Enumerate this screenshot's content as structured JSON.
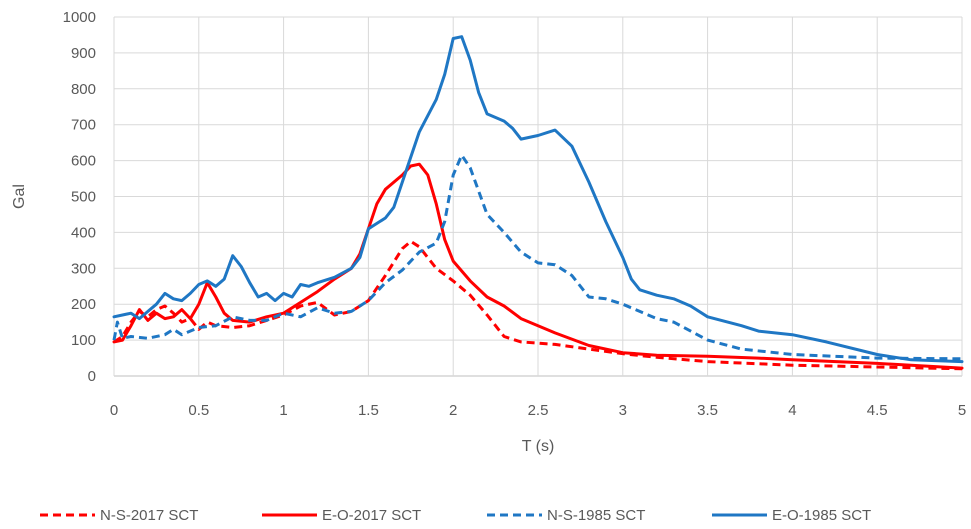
{
  "chart_data": {
    "type": "line",
    "title": "",
    "xlabel": "T (s)",
    "ylabel": "Gal",
    "xlim": [
      0,
      5
    ],
    "ylim": [
      0,
      1000
    ],
    "x_ticks": [
      "0",
      "0.5",
      "1",
      "1.5",
      "2",
      "2.5",
      "3",
      "3.5",
      "4",
      "4.5",
      "5"
    ],
    "y_ticks": [
      "0",
      "100",
      "200",
      "300",
      "400",
      "500",
      "600",
      "700",
      "800",
      "900",
      "1000"
    ],
    "grid": "vertical and horizontal",
    "legend_position": "bottom",
    "series": [
      {
        "name": "N-S-2017 SCT",
        "color": "#ff0000",
        "dash": "dashed",
        "points": [
          [
            0,
            95
          ],
          [
            0.05,
            110
          ],
          [
            0.1,
            150
          ],
          [
            0.15,
            180
          ],
          [
            0.2,
            165
          ],
          [
            0.25,
            185
          ],
          [
            0.3,
            195
          ],
          [
            0.35,
            175
          ],
          [
            0.4,
            150
          ],
          [
            0.45,
            160
          ],
          [
            0.5,
            130
          ],
          [
            0.55,
            150
          ],
          [
            0.6,
            140
          ],
          [
            0.7,
            135
          ],
          [
            0.8,
            140
          ],
          [
            0.9,
            155
          ],
          [
            1.0,
            170
          ],
          [
            1.1,
            195
          ],
          [
            1.2,
            205
          ],
          [
            1.3,
            170
          ],
          [
            1.4,
            180
          ],
          [
            1.5,
            210
          ],
          [
            1.6,
            280
          ],
          [
            1.7,
            355
          ],
          [
            1.75,
            375
          ],
          [
            1.8,
            360
          ],
          [
            1.9,
            300
          ],
          [
            2.0,
            265
          ],
          [
            2.1,
            225
          ],
          [
            2.2,
            170
          ],
          [
            2.3,
            110
          ],
          [
            2.4,
            95
          ],
          [
            2.6,
            88
          ],
          [
            2.8,
            75
          ],
          [
            3.0,
            62
          ],
          [
            3.2,
            52
          ],
          [
            3.5,
            40
          ],
          [
            4.0,
            30
          ],
          [
            4.5,
            25
          ],
          [
            5.0,
            20
          ]
        ]
      },
      {
        "name": "E-O-2017 SCT",
        "color": "#ff0000",
        "dash": "solid",
        "points": [
          [
            0,
            95
          ],
          [
            0.05,
            100
          ],
          [
            0.1,
            140
          ],
          [
            0.15,
            185
          ],
          [
            0.2,
            155
          ],
          [
            0.25,
            175
          ],
          [
            0.3,
            160
          ],
          [
            0.35,
            165
          ],
          [
            0.4,
            185
          ],
          [
            0.45,
            160
          ],
          [
            0.5,
            200
          ],
          [
            0.55,
            260
          ],
          [
            0.6,
            220
          ],
          [
            0.65,
            175
          ],
          [
            0.7,
            155
          ],
          [
            0.8,
            150
          ],
          [
            0.9,
            165
          ],
          [
            1.0,
            175
          ],
          [
            1.1,
            205
          ],
          [
            1.2,
            235
          ],
          [
            1.3,
            270
          ],
          [
            1.4,
            300
          ],
          [
            1.45,
            340
          ],
          [
            1.5,
            410
          ],
          [
            1.55,
            480
          ],
          [
            1.6,
            520
          ],
          [
            1.7,
            560
          ],
          [
            1.75,
            585
          ],
          [
            1.8,
            590
          ],
          [
            1.85,
            560
          ],
          [
            1.9,
            480
          ],
          [
            1.95,
            380
          ],
          [
            2.0,
            320
          ],
          [
            2.1,
            265
          ],
          [
            2.2,
            220
          ],
          [
            2.3,
            195
          ],
          [
            2.4,
            160
          ],
          [
            2.6,
            120
          ],
          [
            2.8,
            85
          ],
          [
            3.0,
            65
          ],
          [
            3.2,
            58
          ],
          [
            3.5,
            55
          ],
          [
            3.8,
            50
          ],
          [
            4.0,
            45
          ],
          [
            4.5,
            35
          ],
          [
            5.0,
            22
          ]
        ]
      },
      {
        "name": "N-S-1985 SCT",
        "color": "#1f77c4",
        "dash": "dashed",
        "points": [
          [
            0,
            100
          ],
          [
            0.02,
            150
          ],
          [
            0.05,
            105
          ],
          [
            0.1,
            110
          ],
          [
            0.2,
            105
          ],
          [
            0.3,
            115
          ],
          [
            0.35,
            130
          ],
          [
            0.4,
            115
          ],
          [
            0.5,
            135
          ],
          [
            0.6,
            140
          ],
          [
            0.7,
            165
          ],
          [
            0.8,
            155
          ],
          [
            0.9,
            155
          ],
          [
            1.0,
            175
          ],
          [
            1.1,
            165
          ],
          [
            1.2,
            190
          ],
          [
            1.3,
            175
          ],
          [
            1.4,
            180
          ],
          [
            1.5,
            210
          ],
          [
            1.6,
            260
          ],
          [
            1.7,
            295
          ],
          [
            1.8,
            345
          ],
          [
            1.9,
            370
          ],
          [
            1.95,
            430
          ],
          [
            2.0,
            560
          ],
          [
            2.05,
            615
          ],
          [
            2.1,
            580
          ],
          [
            2.2,
            450
          ],
          [
            2.3,
            400
          ],
          [
            2.4,
            345
          ],
          [
            2.5,
            315
          ],
          [
            2.6,
            310
          ],
          [
            2.7,
            280
          ],
          [
            2.8,
            220
          ],
          [
            2.9,
            215
          ],
          [
            3.0,
            200
          ],
          [
            3.2,
            160
          ],
          [
            3.3,
            150
          ],
          [
            3.5,
            100
          ],
          [
            3.7,
            75
          ],
          [
            4.0,
            60
          ],
          [
            4.5,
            50
          ],
          [
            5.0,
            48
          ]
        ]
      },
      {
        "name": "E-O-1985 SCT",
        "color": "#1f77c4",
        "dash": "solid",
        "points": [
          [
            0,
            165
          ],
          [
            0.05,
            170
          ],
          [
            0.1,
            175
          ],
          [
            0.15,
            160
          ],
          [
            0.2,
            180
          ],
          [
            0.25,
            200
          ],
          [
            0.3,
            230
          ],
          [
            0.35,
            215
          ],
          [
            0.4,
            210
          ],
          [
            0.45,
            230
          ],
          [
            0.5,
            255
          ],
          [
            0.55,
            265
          ],
          [
            0.6,
            250
          ],
          [
            0.65,
            270
          ],
          [
            0.7,
            335
          ],
          [
            0.75,
            305
          ],
          [
            0.8,
            260
          ],
          [
            0.85,
            220
          ],
          [
            0.9,
            230
          ],
          [
            0.95,
            210
          ],
          [
            1.0,
            230
          ],
          [
            1.05,
            220
          ],
          [
            1.1,
            255
          ],
          [
            1.15,
            250
          ],
          [
            1.2,
            260
          ],
          [
            1.3,
            275
          ],
          [
            1.4,
            300
          ],
          [
            1.45,
            330
          ],
          [
            1.5,
            410
          ],
          [
            1.55,
            425
          ],
          [
            1.6,
            440
          ],
          [
            1.65,
            470
          ],
          [
            1.7,
            540
          ],
          [
            1.8,
            680
          ],
          [
            1.9,
            770
          ],
          [
            1.95,
            840
          ],
          [
            2.0,
            940
          ],
          [
            2.05,
            945
          ],
          [
            2.1,
            880
          ],
          [
            2.15,
            790
          ],
          [
            2.2,
            730
          ],
          [
            2.3,
            710
          ],
          [
            2.35,
            690
          ],
          [
            2.4,
            660
          ],
          [
            2.5,
            670
          ],
          [
            2.6,
            685
          ],
          [
            2.7,
            640
          ],
          [
            2.8,
            540
          ],
          [
            2.9,
            430
          ],
          [
            3.0,
            330
          ],
          [
            3.05,
            270
          ],
          [
            3.1,
            240
          ],
          [
            3.2,
            225
          ],
          [
            3.3,
            215
          ],
          [
            3.4,
            195
          ],
          [
            3.5,
            165
          ],
          [
            3.7,
            140
          ],
          [
            3.8,
            125
          ],
          [
            4.0,
            115
          ],
          [
            4.2,
            95
          ],
          [
            4.5,
            60
          ],
          [
            4.7,
            45
          ],
          [
            5.0,
            40
          ]
        ]
      }
    ]
  }
}
